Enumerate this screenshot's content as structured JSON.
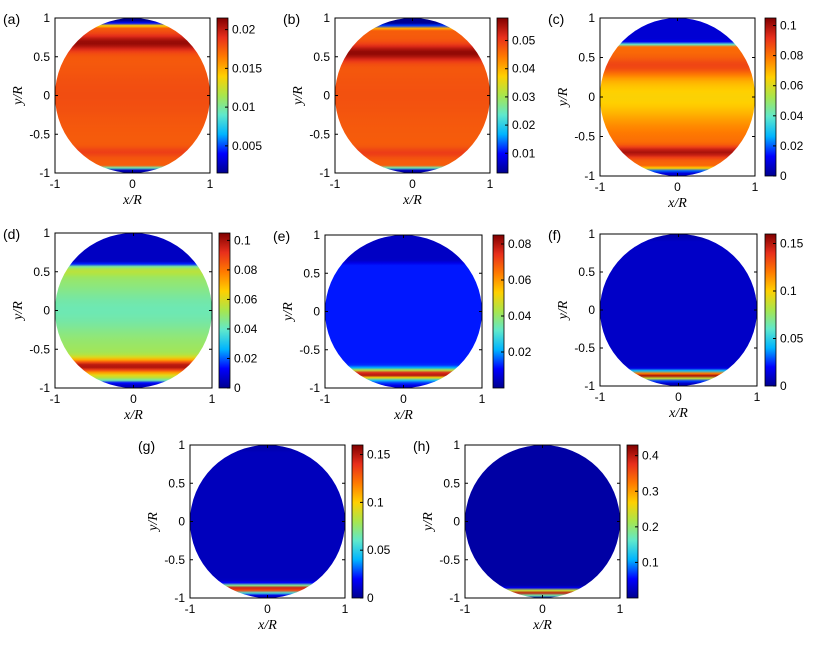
{
  "figure": {
    "colormap": [
      "#00008f",
      "#0000ff",
      "#00b4ff",
      "#5fe8cc",
      "#a8e64d",
      "#ffd000",
      "#ff7a00",
      "#e82f1c",
      "#800000"
    ],
    "panels": [
      {
        "label": "(a)",
        "xlabel": "x/R",
        "ylabel": "y/R",
        "xticks": [
          "-1",
          "0",
          "1"
        ],
        "yticks": [
          "1",
          "0.5",
          "0",
          "-0.5",
          "-1"
        ],
        "colorbar": {
          "min": 0.0015,
          "max": 0.0215,
          "ticks": [
            0.005,
            0.01,
            0.015,
            0.02
          ],
          "tick_labels": [
            "0.005",
            "0.01",
            "0.015",
            "0.02"
          ]
        },
        "field": {
          "bg": 0.0175,
          "top": {
            "y": 0.68,
            "w": 0.1,
            "v": 0.021
          },
          "bottom": {
            "y": -0.73,
            "w": 0.06,
            "v": 0.0185
          },
          "center_v": 0.018,
          "edge": 0.0015,
          "edge_top": 0.88,
          "edge_bottom": -0.9
        }
      },
      {
        "label": "(b)",
        "xlabel": "x/R",
        "ylabel": "y/R",
        "xticks": [
          "-1",
          "0",
          "1"
        ],
        "yticks": [
          "1",
          "0.5",
          "0",
          "-0.5",
          "-1"
        ],
        "colorbar": {
          "min": 0.003,
          "max": 0.058,
          "ticks": [
            0.01,
            0.02,
            0.03,
            0.04,
            0.05
          ],
          "tick_labels": [
            "0.01",
            "0.02",
            "0.03",
            "0.04",
            "0.05"
          ]
        },
        "field": {
          "bg": 0.047,
          "top": {
            "y": 0.55,
            "w": 0.1,
            "v": 0.057
          },
          "bottom": {
            "y": -0.74,
            "w": 0.06,
            "v": 0.05
          },
          "center_v": 0.048,
          "edge": 0.003,
          "edge_top": 0.85,
          "edge_bottom": -0.9
        }
      },
      {
        "label": "(c)",
        "xlabel": "x/R",
        "ylabel": "y/R",
        "xticks": [
          "-1",
          "0",
          "1"
        ],
        "yticks": [
          "1",
          "0.5",
          "0",
          "-0.5",
          "-1"
        ],
        "colorbar": {
          "min": 0,
          "max": 0.105,
          "ticks": [
            0,
            0.02,
            0.04,
            0.06,
            0.08,
            0.1
          ],
          "tick_labels": [
            "0",
            "0.02",
            "0.04",
            "0.06",
            "0.08",
            "0.1"
          ]
        },
        "field": {
          "bg": 0.082,
          "top": {
            "y": 0.4,
            "w": 0.12,
            "v": 0.088
          },
          "bottom": {
            "y": -0.7,
            "w": 0.07,
            "v": 0.1
          },
          "center_v": 0.065,
          "edge": 0.008,
          "edge_top": 0.63,
          "edge_bottom": -0.88
        }
      },
      {
        "label": "(d)",
        "xlabel": "x/R",
        "ylabel": "y/R",
        "xticks": [
          "-1",
          "0",
          "1"
        ],
        "yticks": [
          "1",
          "0.5",
          "0",
          "-0.5",
          "-1"
        ],
        "colorbar": {
          "min": 0,
          "max": 0.105,
          "ticks": [
            0,
            0.02,
            0.04,
            0.06,
            0.08,
            0.1
          ],
          "tick_labels": [
            "0",
            "0.02",
            "0.04",
            "0.06",
            "0.08",
            "0.1"
          ]
        },
        "field": {
          "bg": 0.052,
          "top": {
            "y": 0.5,
            "w": 0.05,
            "v": 0.055
          },
          "bottom": {
            "y": -0.72,
            "w": 0.09,
            "v": 0.1
          },
          "center_v": 0.042,
          "edge": 0.006,
          "edge_top": 0.55,
          "edge_bottom": -0.88
        }
      },
      {
        "label": "(e)",
        "xlabel": "x/R",
        "ylabel": "y/R",
        "xticks": [
          "-1",
          "0",
          "1"
        ],
        "yticks": [
          "1",
          "0.5",
          "0",
          "-0.5",
          "-1"
        ],
        "colorbar": {
          "min": 0,
          "max": 0.085,
          "ticks": [
            0.02,
            0.04,
            0.06,
            0.08
          ],
          "tick_labels": [
            "0.02",
            "0.04",
            "0.06",
            "0.08"
          ]
        },
        "field": {
          "bg": 0.012,
          "top": {
            "y": 0.5,
            "w": 0.05,
            "v": 0.012
          },
          "bottom": {
            "y": -0.82,
            "w": 0.06,
            "v": 0.083
          },
          "center_v": 0.012,
          "edge": 0.005,
          "edge_top": 0.6,
          "edge_bottom": -0.93
        }
      },
      {
        "label": "(f)",
        "xlabel": "x/R",
        "ylabel": "y/R",
        "xticks": [
          "-1",
          "0",
          "1"
        ],
        "yticks": [
          "1",
          "0.5",
          "0",
          "-0.5",
          "-1"
        ],
        "colorbar": {
          "min": 0,
          "max": 0.16,
          "ticks": [
            0,
            0.05,
            0.1,
            0.15
          ],
          "tick_labels": [
            "0",
            "0.05",
            "0.1",
            "0.15"
          ]
        },
        "field": {
          "bg": 0.01,
          "top": {
            "y": 0.5,
            "w": 0.05,
            "v": 0.01
          },
          "bottom": {
            "y": -0.86,
            "w": 0.05,
            "v": 0.155
          },
          "center_v": 0.01,
          "edge": 0.005,
          "edge_top": 0.9,
          "edge_bottom": -0.95
        }
      },
      {
        "label": "(g)",
        "xlabel": "x/R",
        "ylabel": "y/R",
        "xticks": [
          "-1",
          "0",
          "1"
        ],
        "yticks": [
          "1",
          "0.5",
          "0",
          "-0.5",
          "-1"
        ],
        "colorbar": {
          "min": 0,
          "max": 0.16,
          "ticks": [
            0,
            0.05,
            0.1,
            0.15
          ],
          "tick_labels": [
            "0",
            "0.05",
            "0.1",
            "0.15"
          ]
        },
        "field": {
          "bg": 0.008,
          "top": {
            "y": 0.5,
            "w": 0.05,
            "v": 0.008
          },
          "bottom": {
            "y": -0.88,
            "w": 0.05,
            "v": 0.155
          },
          "center_v": 0.008,
          "edge": 0.005,
          "edge_top": 0.9,
          "edge_bottom": -0.96
        }
      },
      {
        "label": "(h)",
        "xlabel": "x/R",
        "ylabel": "y/R",
        "xticks": [
          "-1",
          "0",
          "1"
        ],
        "yticks": [
          "1",
          "0.5",
          "0",
          "-0.5",
          "-1"
        ],
        "colorbar": {
          "min": 0,
          "max": 0.43,
          "ticks": [
            0.1,
            0.2,
            0.3,
            0.4
          ],
          "tick_labels": [
            "0.1",
            "0.2",
            "0.3",
            "0.4"
          ]
        },
        "field": {
          "bg": 0.01,
          "top": {
            "y": 0.5,
            "w": 0.05,
            "v": 0.01
          },
          "bottom": {
            "y": -0.93,
            "w": 0.04,
            "v": 0.4
          },
          "center_v": 0.01,
          "edge": 0.01,
          "edge_top": 0.95,
          "edge_bottom": -0.97
        }
      }
    ]
  },
  "chart_data": [
    {
      "type": "heatmap",
      "title": "",
      "panel": "(a)",
      "xlabel": "x/R",
      "ylabel": "y/R",
      "xlim": [
        -1,
        1
      ],
      "ylim": [
        -1,
        1
      ],
      "colorbar_range": [
        0.0015,
        0.0215
      ],
      "colorbar_ticks": [
        0.005,
        0.01,
        0.015,
        0.02
      ],
      "rows": [
        {
          "y": 0.9,
          "value": 0.002
        },
        {
          "y": 0.68,
          "value": 0.021
        },
        {
          "y": 0.3,
          "value": 0.0175
        },
        {
          "y": 0,
          "value": 0.018
        },
        {
          "y": -0.3,
          "value": 0.0175
        },
        {
          "y": -0.73,
          "value": 0.0185
        },
        {
          "y": -0.9,
          "value": 0.002
        }
      ]
    },
    {
      "type": "heatmap",
      "title": "",
      "panel": "(b)",
      "xlabel": "x/R",
      "ylabel": "y/R",
      "xlim": [
        -1,
        1
      ],
      "ylim": [
        -1,
        1
      ],
      "colorbar_range": [
        0.003,
        0.058
      ],
      "colorbar_ticks": [
        0.01,
        0.02,
        0.03,
        0.04,
        0.05
      ],
      "rows": [
        {
          "y": 0.9,
          "value": 0.004
        },
        {
          "y": 0.55,
          "value": 0.057
        },
        {
          "y": 0.2,
          "value": 0.047
        },
        {
          "y": 0,
          "value": 0.048
        },
        {
          "y": -0.3,
          "value": 0.047
        },
        {
          "y": -0.74,
          "value": 0.05
        },
        {
          "y": -0.92,
          "value": 0.004
        }
      ]
    },
    {
      "type": "heatmap",
      "title": "",
      "panel": "(c)",
      "xlabel": "x/R",
      "ylabel": "y/R",
      "xlim": [
        -1,
        1
      ],
      "ylim": [
        -1,
        1
      ],
      "colorbar_range": [
        0,
        0.105
      ],
      "colorbar_ticks": [
        0,
        0.02,
        0.04,
        0.06,
        0.08,
        0.1
      ],
      "rows": [
        {
          "y": 0.85,
          "value": 0.008
        },
        {
          "y": 0.4,
          "value": 0.088
        },
        {
          "y": 0.1,
          "value": 0.065
        },
        {
          "y": -0.3,
          "value": 0.082
        },
        {
          "y": -0.7,
          "value": 0.1
        },
        {
          "y": -0.92,
          "value": 0.008
        }
      ]
    },
    {
      "type": "heatmap",
      "title": "",
      "panel": "(d)",
      "xlabel": "x/R",
      "ylabel": "y/R",
      "xlim": [
        -1,
        1
      ],
      "ylim": [
        -1,
        1
      ],
      "colorbar_range": [
        0,
        0.105
      ],
      "colorbar_ticks": [
        0,
        0.02,
        0.04,
        0.06,
        0.08,
        0.1
      ],
      "rows": [
        {
          "y": 0.8,
          "value": 0.006
        },
        {
          "y": 0.5,
          "value": 0.055
        },
        {
          "y": 0.1,
          "value": 0.042
        },
        {
          "y": -0.3,
          "value": 0.052
        },
        {
          "y": -0.72,
          "value": 0.1
        },
        {
          "y": -0.92,
          "value": 0.006
        }
      ]
    },
    {
      "type": "heatmap",
      "title": "",
      "panel": "(e)",
      "xlabel": "x/R",
      "ylabel": "y/R",
      "xlim": [
        -1,
        1
      ],
      "ylim": [
        -1,
        1
      ],
      "colorbar_range": [
        0,
        0.085
      ],
      "colorbar_ticks": [
        0.02,
        0.04,
        0.06,
        0.08
      ],
      "rows": [
        {
          "y": 0.8,
          "value": 0.005
        },
        {
          "y": 0.3,
          "value": 0.012
        },
        {
          "y": -0.3,
          "value": 0.012
        },
        {
          "y": -0.6,
          "value": 0.03
        },
        {
          "y": -0.82,
          "value": 0.083
        },
        {
          "y": -0.95,
          "value": 0.005
        }
      ]
    },
    {
      "type": "heatmap",
      "title": "",
      "panel": "(f)",
      "xlabel": "x/R",
      "ylabel": "y/R",
      "xlim": [
        -1,
        1
      ],
      "ylim": [
        -1,
        1
      ],
      "colorbar_range": [
        0,
        0.16
      ],
      "colorbar_ticks": [
        0,
        0.05,
        0.1,
        0.15
      ],
      "rows": [
        {
          "y": 0.5,
          "value": 0.01
        },
        {
          "y": -0.5,
          "value": 0.01
        },
        {
          "y": -0.75,
          "value": 0.06
        },
        {
          "y": -0.86,
          "value": 0.155
        },
        {
          "y": -0.96,
          "value": 0.005
        }
      ]
    },
    {
      "type": "heatmap",
      "title": "",
      "panel": "(g)",
      "xlabel": "x/R",
      "ylabel": "y/R",
      "xlim": [
        -1,
        1
      ],
      "ylim": [
        -1,
        1
      ],
      "colorbar_range": [
        0,
        0.16
      ],
      "colorbar_ticks": [
        0,
        0.05,
        0.1,
        0.15
      ],
      "rows": [
        {
          "y": 0.5,
          "value": 0.008
        },
        {
          "y": -0.5,
          "value": 0.008
        },
        {
          "y": -0.8,
          "value": 0.06
        },
        {
          "y": -0.88,
          "value": 0.155
        },
        {
          "y": -0.97,
          "value": 0.005
        }
      ]
    },
    {
      "type": "heatmap",
      "title": "",
      "panel": "(h)",
      "xlabel": "x/R",
      "ylabel": "y/R",
      "xlim": [
        -1,
        1
      ],
      "ylim": [
        -1,
        1
      ],
      "colorbar_range": [
        0,
        0.43
      ],
      "colorbar_ticks": [
        0.1,
        0.2,
        0.3,
        0.4
      ],
      "rows": [
        {
          "y": 0.5,
          "value": 0.01
        },
        {
          "y": -0.5,
          "value": 0.01
        },
        {
          "y": -0.87,
          "value": 0.12
        },
        {
          "y": -0.93,
          "value": 0.4
        },
        {
          "y": -0.98,
          "value": 0.01
        }
      ]
    }
  ]
}
